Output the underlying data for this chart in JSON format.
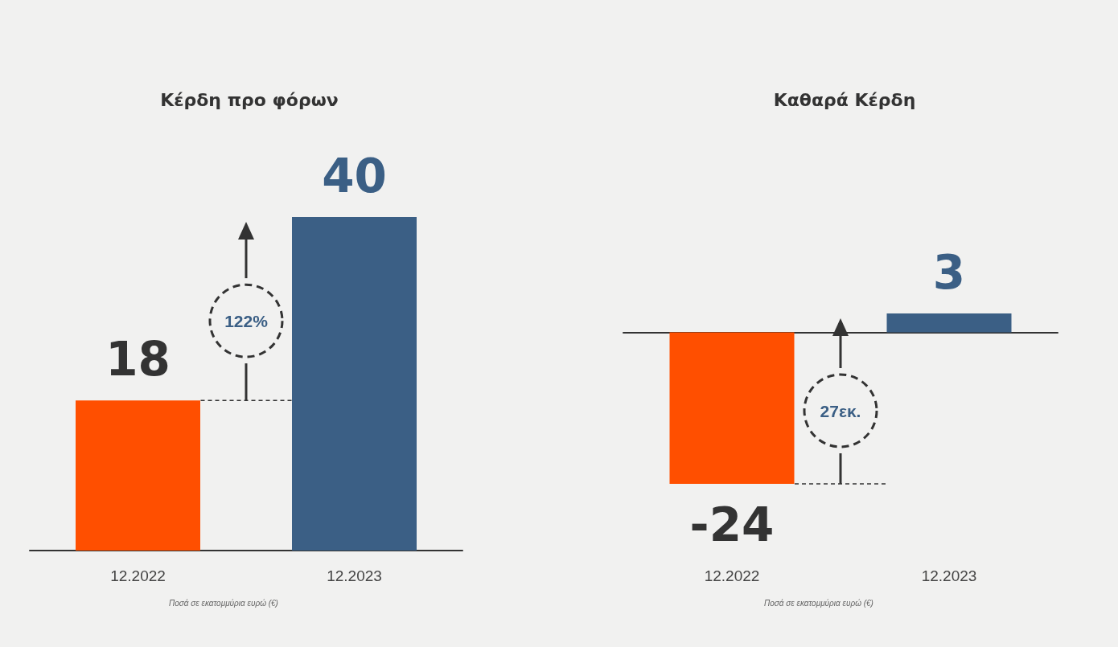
{
  "chart_data": [
    {
      "type": "bar",
      "title": "Κέρδη προ φόρων",
      "categories": [
        "12.2022",
        "12.2023"
      ],
      "values": [
        18,
        40
      ],
      "colors": [
        "#ff4f00",
        "#3b5f85"
      ],
      "data_labels": true,
      "annotations": [
        "122%",
        "Ποσά σε εκατομμύρια ευρώ (€)"
      ]
    },
    {
      "type": "bar",
      "title": "Καθαρά Κέρδη",
      "categories": [
        "12.2022",
        "12.2023"
      ],
      "values": [
        -24,
        3
      ],
      "colors": [
        "#ff4f00",
        "#3b5f85"
      ],
      "data_labels": true,
      "annotations": [
        "27εκ.",
        "Ποσά σε εκατομμύρια ευρώ (€)"
      ]
    }
  ]
}
